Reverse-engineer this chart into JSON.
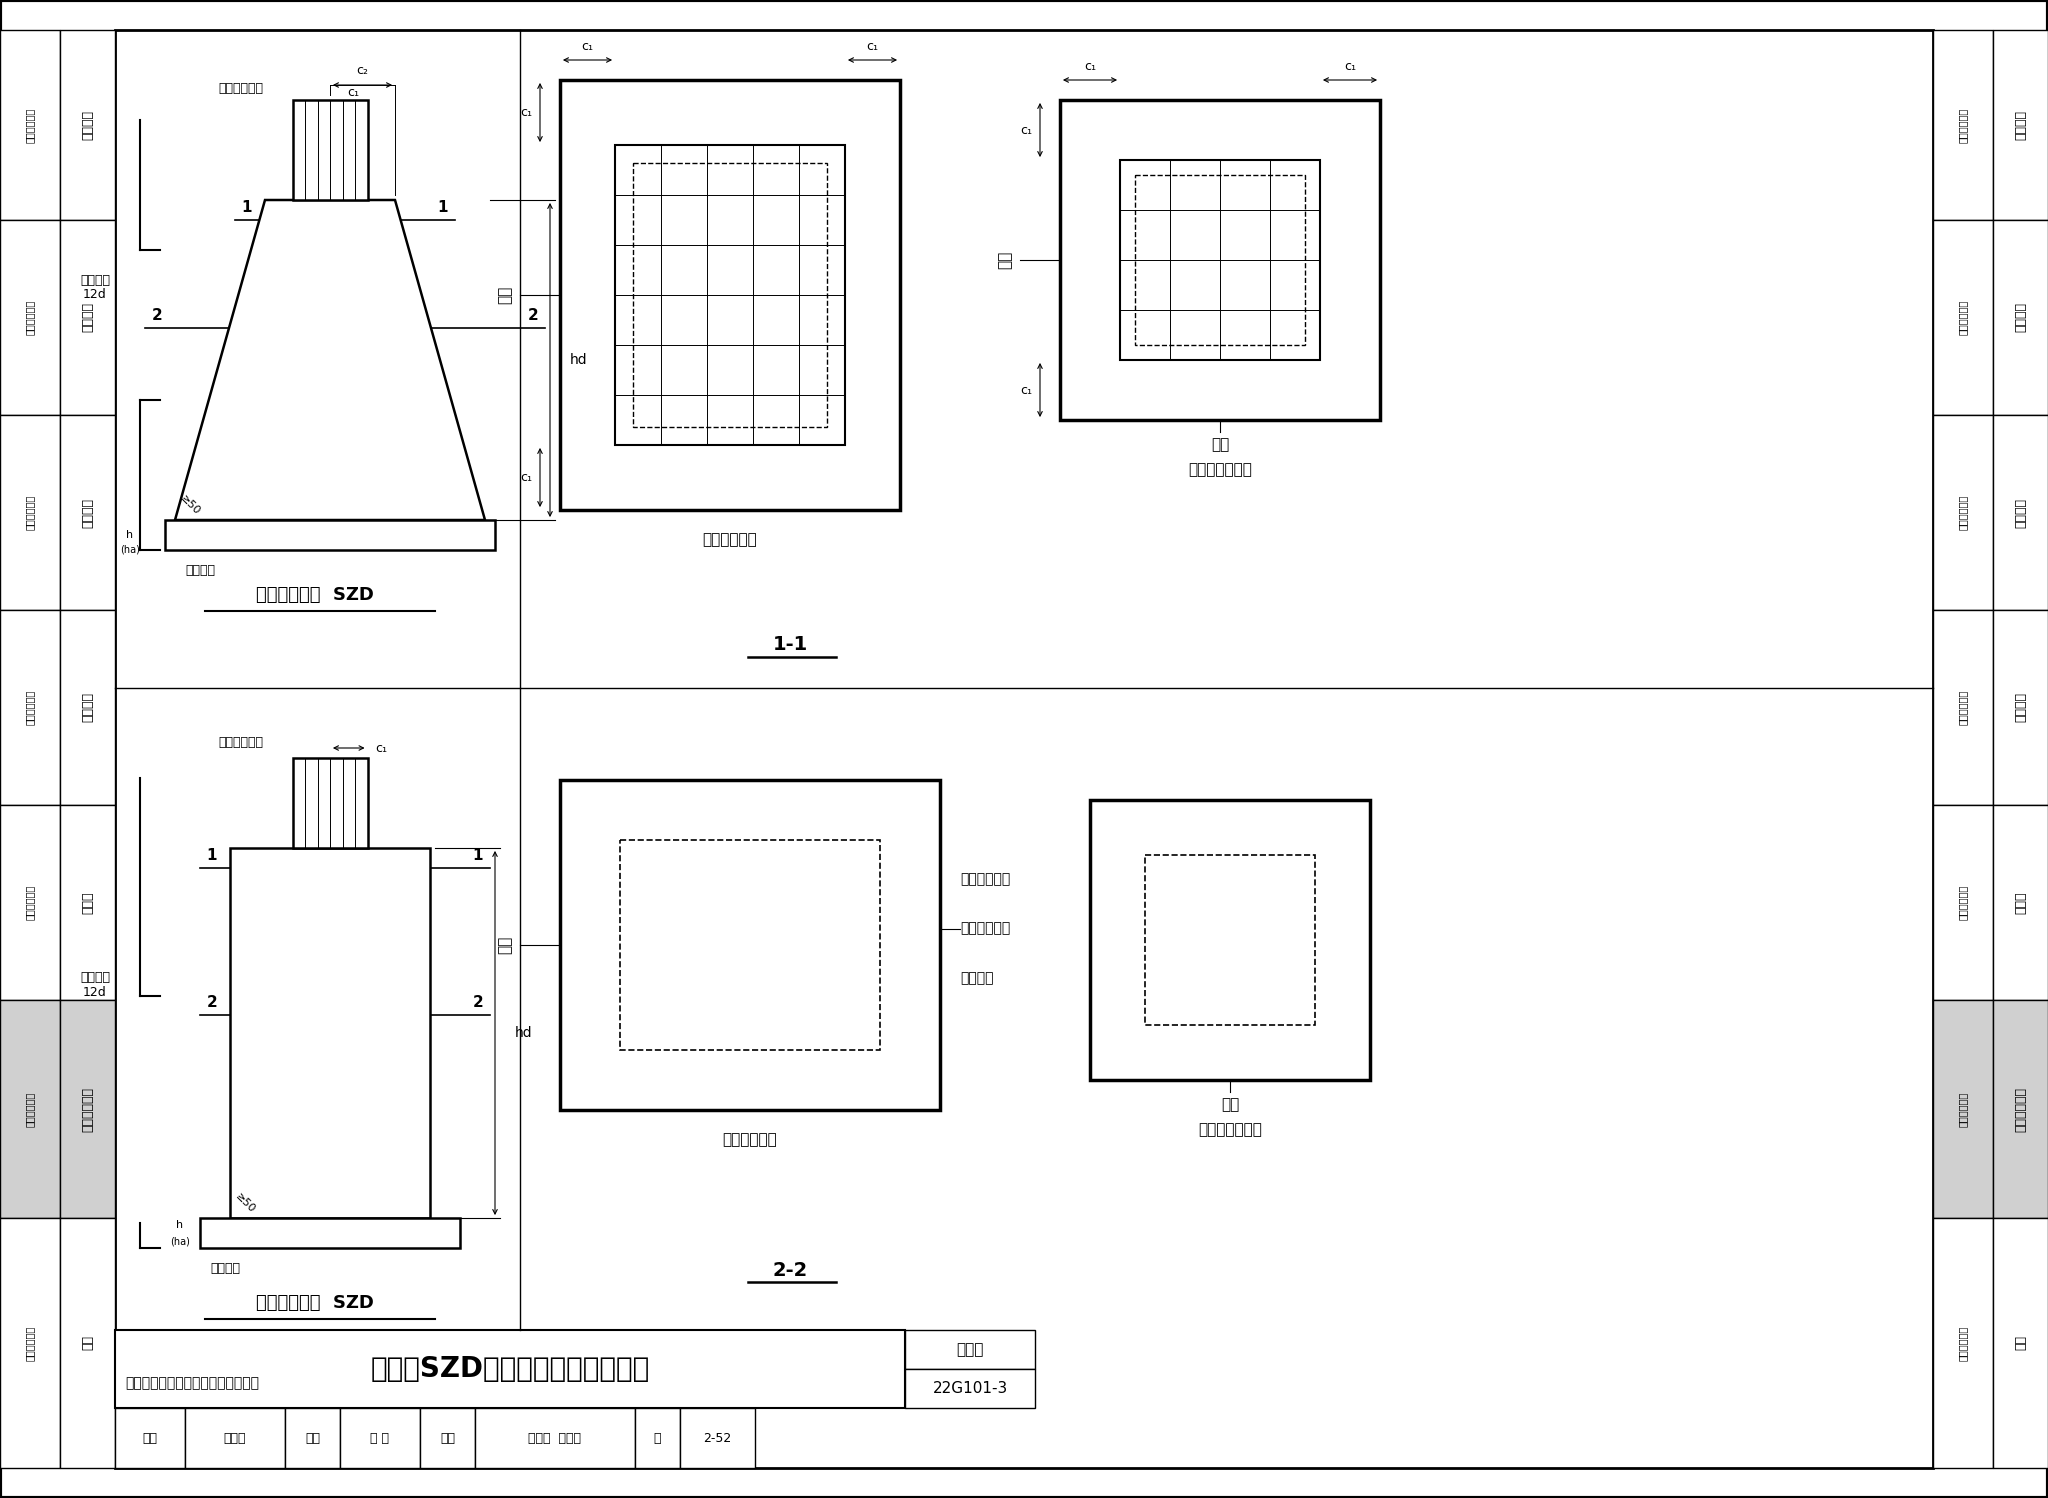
{
  "bg_color": "#ffffff",
  "title_text": "上柱墓SZD构造（棱台与棱柱形）",
  "figure_set_value": "22G101-3",
  "page_number": "2-52",
  "note_text": "注：图中括号内数値用于抗震设计。",
  "sidebar_sections": [
    [
      "一般构造",
      false
    ],
    [
      "独立基础",
      false
    ],
    [
      "条形基础",
      false
    ],
    [
      "筏形基础",
      false
    ],
    [
      "桩基础",
      false
    ],
    [
      "基础相关构造",
      true
    ],
    [
      "附录",
      false
    ]
  ],
  "sidebar_label": "标准构造详图"
}
